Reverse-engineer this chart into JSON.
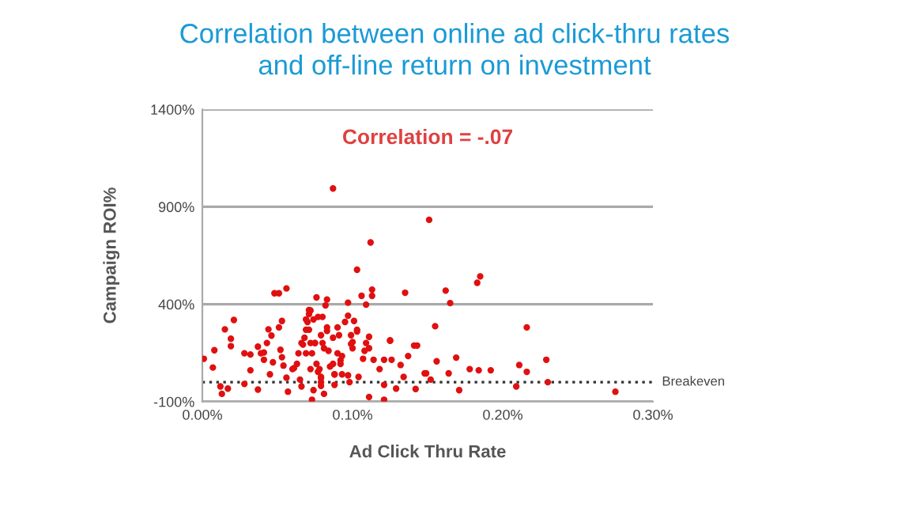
{
  "chart_data": {
    "type": "scatter",
    "title": "Correlation between online ad click-thru rates\nand off-line return on investment",
    "xlabel": "Ad Click Thru Rate",
    "ylabel": "Campaign ROI%",
    "annotations": [
      "Correlation = -.07"
    ],
    "ref_lines": [
      {
        "axis": "y",
        "value": 0,
        "label": "Breakeven",
        "color": "#333333",
        "line_style": "dotted"
      }
    ],
    "xlim": [
      0,
      0.3
    ],
    "ylim": [
      -100,
      1400
    ],
    "xticks": [
      {
        "value": 0,
        "label": "0.00%"
      },
      {
        "value": 0.1,
        "label": "0.10%"
      },
      {
        "value": 0.2,
        "label": "0.20%"
      },
      {
        "value": 0.3,
        "label": "0.30%"
      }
    ],
    "yticks": [
      {
        "value": -100,
        "label": "-100%"
      },
      {
        "value": 400,
        "label": "400%"
      },
      {
        "value": 900,
        "label": "900%"
      },
      {
        "value": 1400,
        "label": "1400%"
      }
    ],
    "grid": "y",
    "marker": "circle",
    "series": [
      {
        "color": "#e01010",
        "x": [
          0.001,
          0.007,
          0.008,
          0.012,
          0.013,
          0.015,
          0.017,
          0.019,
          0.019,
          0.021,
          0.028,
          0.028,
          0.032,
          0.032,
          0.037,
          0.037,
          0.039,
          0.041,
          0.041,
          0.043,
          0.044,
          0.045,
          0.046,
          0.047,
          0.048,
          0.051,
          0.051,
          0.052,
          0.053,
          0.053,
          0.054,
          0.056,
          0.056,
          0.057,
          0.06,
          0.061,
          0.064,
          0.065,
          0.066,
          0.067,
          0.068,
          0.069,
          0.07,
          0.071,
          0.072,
          0.073,
          0.074,
          0.075,
          0.076,
          0.078,
          0.079,
          0.079,
          0.08,
          0.081,
          0.082,
          0.083,
          0.084,
          0.087,
          0.087,
          0.088,
          0.09,
          0.091,
          0.092,
          0.093,
          0.095,
          0.097,
          0.098,
          0.1,
          0.103,
          0.103,
          0.106,
          0.109,
          0.109,
          0.111,
          0.112,
          0.113,
          0.121,
          0.125,
          0.135,
          0.063,
          0.069,
          0.071,
          0.072,
          0.074,
          0.071,
          0.072,
          0.073,
          0.075,
          0.076,
          0.077,
          0.079,
          0.08,
          0.081,
          0.083,
          0.085,
          0.077,
          0.079,
          0.066,
          0.069,
          0.087,
          0.088,
          0.09,
          0.092,
          0.093,
          0.151,
          0.113,
          0.162,
          0.165,
          0.183,
          0.185,
          0.155,
          0.216,
          0.083,
          0.097,
          0.101,
          0.103,
          0.099,
          0.111,
          0.099,
          0.1,
          0.108,
          0.111,
          0.107,
          0.114,
          0.125,
          0.121,
          0.126,
          0.132,
          0.137,
          0.141,
          0.143,
          0.156,
          0.169,
          0.164,
          0.149,
          0.184,
          0.192,
          0.211,
          0.229,
          0.216,
          0.23,
          0.209,
          0.171,
          0.152,
          0.148,
          0.121,
          0.129,
          0.275,
          0.142,
          0.088,
          0.079,
          0.097,
          0.104,
          0.118,
          0.134,
          0.178
        ],
        "values": [
          120,
          75,
          164,
          -22,
          -60,
          271,
          -33,
          223,
          185,
          319,
          -9,
          148,
          61,
          142,
          182,
          -38,
          148,
          115,
          152,
          201,
          271,
          40,
          239,
          102,
          456,
          456,
          281,
          166,
          128,
          314,
          85,
          481,
          23,
          -49,
          67,
          72,
          148,
          13,
          -22,
          193,
          228,
          269,
          309,
          370,
          67,
          -90,
          -41,
          201,
          435,
          67,
          21,
          0,
          201,
          -60,
          394,
          263,
          161,
          994,
          94,
          -14,
          281,
          241,
          112,
          134,
          309,
          341,
          0,
          206,
          577,
          260,
          443,
          398,
          201,
          -76,
          717,
          475,
          -90,
          215,
          459,
          94,
          322,
          349,
          368,
          322,
          269,
          201,
          148,
          201,
          94,
          53,
          27,
          335,
          174,
          281,
          80,
          335,
          241,
          201,
          148,
          228,
          40,
          148,
          94,
          40,
          833,
          443,
          470,
          406,
          510,
          543,
          287,
          281,
          424,
          408,
          314,
          269,
          241,
          233,
          196,
          174,
          161,
          174,
          120,
          115,
          212,
          115,
          115,
          88,
          134,
          188,
          188,
          107,
          126,
          45,
          45,
          61,
          61,
          88,
          115,
          53,
          0,
          -22,
          -41,
          13,
          45,
          -14,
          -33,
          -49,
          -35,
          40,
          -19,
          35,
          27,
          67,
          27,
          67
        ]
      }
    ]
  }
}
